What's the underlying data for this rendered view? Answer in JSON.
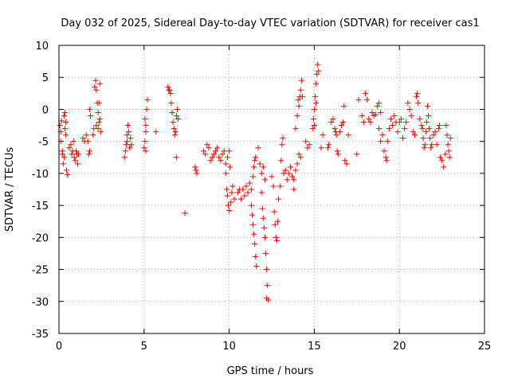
{
  "chart_data": {
    "type": "scatter",
    "title": "Day 032 of 2025, Sidereal Day-to-day VTEC variation (SDTVAR) for receiver cas1",
    "xlabel": "GPS time / hours",
    "ylabel": "SDTVAR / TECUs",
    "xlim": [
      0,
      25
    ],
    "ylim": [
      -35,
      10
    ],
    "xticks": [
      0,
      5,
      10,
      15,
      20,
      25
    ],
    "yticks": [
      -35,
      -30,
      -25,
      -20,
      -15,
      -10,
      -5,
      0,
      5,
      10
    ],
    "xtick_labels": [
      "0",
      "5",
      "10",
      "15",
      "20",
      "25"
    ],
    "ytick_labels": [
      "-35",
      "-30",
      "-25",
      "-20",
      "-15",
      "-10",
      "-5",
      "0",
      "5",
      "10"
    ],
    "grid": true,
    "marker": "plus",
    "series": [
      {
        "name": "SDTVAR",
        "color": "#ff0000",
        "points": [
          [
            0.05,
            -2.5
          ],
          [
            0.1,
            -3.5
          ],
          [
            0.15,
            -1.8
          ],
          [
            0.2,
            -7.0
          ],
          [
            0.25,
            -8.5
          ],
          [
            0.3,
            -1.0
          ],
          [
            0.35,
            -0.5
          ],
          [
            0.4,
            -4.0
          ],
          [
            0.45,
            -9.5
          ],
          [
            0.5,
            -10.2
          ],
          [
            0.2,
            -6.5
          ],
          [
            0.3,
            -7.5
          ],
          [
            0.35,
            -3.0
          ],
          [
            0.4,
            -2.0
          ],
          [
            0.1,
            -5.0
          ],
          [
            0.6,
            -6.0
          ],
          [
            0.7,
            -5.5
          ],
          [
            0.75,
            -7.0
          ],
          [
            0.8,
            -6.5
          ],
          [
            0.85,
            -5.0
          ],
          [
            0.9,
            -7.5
          ],
          [
            0.95,
            -8.0
          ],
          [
            1.0,
            -6.5
          ],
          [
            1.05,
            -7.0
          ],
          [
            1.1,
            -8.5
          ],
          [
            1.15,
            -7.0
          ],
          [
            1.4,
            -4.5
          ],
          [
            1.5,
            -5.0
          ],
          [
            1.6,
            -4.0
          ],
          [
            1.7,
            -5.0
          ],
          [
            1.75,
            -7.0
          ],
          [
            1.8,
            0.0
          ],
          [
            1.85,
            -1.0
          ],
          [
            1.8,
            -6.5
          ],
          [
            2.0,
            -4.0
          ],
          [
            2.05,
            -3.0
          ],
          [
            2.1,
            3.5
          ],
          [
            2.15,
            4.5
          ],
          [
            2.2,
            3.0
          ],
          [
            2.25,
            1.0
          ],
          [
            2.3,
            -0.5
          ],
          [
            2.35,
            -2.0
          ],
          [
            2.3,
            -3.0
          ],
          [
            2.4,
            4.0
          ],
          [
            2.2,
            -2.5
          ],
          [
            2.35,
            1.0
          ],
          [
            2.4,
            -1.5
          ],
          [
            2.45,
            -3.5
          ],
          [
            3.85,
            -7.5
          ],
          [
            3.9,
            -6.5
          ],
          [
            3.95,
            -5.5
          ],
          [
            4.0,
            -5.0
          ],
          [
            4.05,
            -2.5
          ],
          [
            4.1,
            -3.5
          ],
          [
            4.15,
            -6.0
          ],
          [
            4.2,
            -4.5
          ],
          [
            4.25,
            -5.5
          ],
          [
            4.0,
            -4.0
          ],
          [
            5.0,
            -6.0
          ],
          [
            5.05,
            -5.0
          ],
          [
            5.1,
            -6.5
          ],
          [
            5.05,
            -1.5
          ],
          [
            5.1,
            -2.5
          ],
          [
            5.15,
            0.0
          ],
          [
            5.2,
            1.5
          ],
          [
            5.1,
            -3.5
          ],
          [
            5.7,
            -3.5
          ],
          [
            6.4,
            3.5
          ],
          [
            6.45,
            3.0
          ],
          [
            6.5,
            3.0
          ],
          [
            6.55,
            2.5
          ],
          [
            6.6,
            1.0
          ],
          [
            6.65,
            -0.5
          ],
          [
            6.7,
            -2.0
          ],
          [
            6.75,
            -3.0
          ],
          [
            6.8,
            -4.0
          ],
          [
            6.85,
            -3.5
          ],
          [
            6.9,
            -1.0
          ],
          [
            6.95,
            0.0
          ],
          [
            7.0,
            -1.5
          ],
          [
            6.9,
            -7.5
          ],
          [
            7.4,
            -16.2
          ],
          [
            8.0,
            -9.0
          ],
          [
            8.05,
            -9.5
          ],
          [
            8.1,
            -10.0
          ],
          [
            8.5,
            -6.5
          ],
          [
            8.6,
            -7.0
          ],
          [
            8.7,
            -5.5
          ],
          [
            8.8,
            -6.0
          ],
          [
            8.9,
            -8.0
          ],
          [
            9.0,
            -7.5
          ],
          [
            9.1,
            -7.0
          ],
          [
            9.2,
            -6.5
          ],
          [
            9.3,
            -6.0
          ],
          [
            9.4,
            -7.5
          ],
          [
            9.5,
            -8.0
          ],
          [
            9.6,
            -7.0
          ],
          [
            9.7,
            -6.5
          ],
          [
            9.8,
            -8.5
          ],
          [
            9.9,
            -7.5
          ],
          [
            10.0,
            -6.5
          ],
          [
            10.05,
            -9.0
          ],
          [
            9.8,
            -10.0
          ],
          [
            9.85,
            -12.5
          ],
          [
            9.9,
            -13.5
          ],
          [
            9.95,
            -15.0
          ],
          [
            10.0,
            -15.8
          ],
          [
            10.1,
            -14.5
          ],
          [
            10.15,
            -13.0
          ],
          [
            10.2,
            -12.0
          ],
          [
            10.3,
            -14.0
          ],
          [
            10.5,
            -13.0
          ],
          [
            10.6,
            -12.5
          ],
          [
            10.7,
            -14.0
          ],
          [
            10.8,
            -12.5
          ],
          [
            10.9,
            -13.5
          ],
          [
            11.0,
            -12.0
          ],
          [
            11.1,
            -13.0
          ],
          [
            11.2,
            -11.5
          ],
          [
            11.3,
            -12.5
          ],
          [
            11.4,
            -10.5
          ],
          [
            11.45,
            -9.0
          ],
          [
            11.5,
            -8.0
          ],
          [
            11.55,
            -7.5
          ],
          [
            11.3,
            -15.0
          ],
          [
            11.35,
            -16.5
          ],
          [
            11.4,
            -18.0
          ],
          [
            11.45,
            -19.5
          ],
          [
            11.5,
            -21.0
          ],
          [
            11.55,
            -23.0
          ],
          [
            11.6,
            -24.5
          ],
          [
            11.7,
            -6.0
          ],
          [
            11.8,
            -8.5
          ],
          [
            11.9,
            -10.0
          ],
          [
            12.0,
            -9.0
          ],
          [
            12.1,
            -11.0
          ],
          [
            11.9,
            -13.0
          ],
          [
            11.95,
            -15.5
          ],
          [
            12.0,
            -17.0
          ],
          [
            12.05,
            -18.5
          ],
          [
            12.1,
            -20.0
          ],
          [
            12.15,
            -22.5
          ],
          [
            12.2,
            -25.0
          ],
          [
            12.25,
            -27.5
          ],
          [
            12.2,
            -29.5
          ],
          [
            12.3,
            -29.8
          ],
          [
            12.5,
            -10.5
          ],
          [
            12.6,
            -12.0
          ],
          [
            12.65,
            -16.0
          ],
          [
            12.7,
            -18.0
          ],
          [
            12.75,
            -20.0
          ],
          [
            12.8,
            -20.5
          ],
          [
            12.85,
            -17.5
          ],
          [
            12.9,
            -14.0
          ],
          [
            13.0,
            -12.0
          ],
          [
            13.05,
            -8.0
          ],
          [
            13.1,
            -5.5
          ],
          [
            13.15,
            -4.5
          ],
          [
            13.2,
            -10.0
          ],
          [
            13.3,
            -9.5
          ],
          [
            13.4,
            -11.0
          ],
          [
            13.5,
            -10.0
          ],
          [
            13.6,
            -9.0
          ],
          [
            13.7,
            -10.5
          ],
          [
            13.8,
            -11.0
          ],
          [
            13.9,
            -9.5
          ],
          [
            14.0,
            -8.5
          ],
          [
            14.1,
            -7.0
          ],
          [
            14.2,
            -7.5
          ],
          [
            13.8,
            -12.5
          ],
          [
            13.9,
            -3.0
          ],
          [
            14.0,
            -1.0
          ],
          [
            14.05,
            1.5
          ],
          [
            14.1,
            0.5
          ],
          [
            14.15,
            2.0
          ],
          [
            14.2,
            3.0
          ],
          [
            14.25,
            4.5
          ],
          [
            14.3,
            2.0
          ],
          [
            14.5,
            -5.0
          ],
          [
            14.6,
            -6.0
          ],
          [
            14.7,
            -5.5
          ],
          [
            14.9,
            -3.0
          ],
          [
            14.95,
            -1.5
          ],
          [
            15.0,
            0.0
          ],
          [
            15.05,
            2.0
          ],
          [
            15.1,
            4.0
          ],
          [
            15.15,
            5.5
          ],
          [
            15.2,
            7.0
          ],
          [
            15.25,
            6.0
          ],
          [
            15.0,
            -2.5
          ],
          [
            15.1,
            1.0
          ],
          [
            15.4,
            -6.0
          ],
          [
            15.5,
            -4.0
          ],
          [
            15.8,
            -6.0
          ],
          [
            15.85,
            -5.5
          ],
          [
            16.0,
            -2.0
          ],
          [
            16.1,
            -1.5
          ],
          [
            16.2,
            -3.0
          ],
          [
            16.25,
            -3.5
          ],
          [
            16.3,
            -4.0
          ],
          [
            16.35,
            -6.5
          ],
          [
            16.4,
            -7.0
          ],
          [
            16.5,
            -3.5
          ],
          [
            16.6,
            -2.5
          ],
          [
            16.7,
            -2.0
          ],
          [
            16.75,
            0.5
          ],
          [
            16.8,
            -8.0
          ],
          [
            16.9,
            -8.5
          ],
          [
            17.0,
            -4.0
          ],
          [
            17.5,
            -7.0
          ],
          [
            17.6,
            1.5
          ],
          [
            17.8,
            -1.0
          ],
          [
            17.9,
            -2.0
          ],
          [
            18.0,
            2.5
          ],
          [
            18.1,
            1.5
          ],
          [
            18.2,
            -1.5
          ],
          [
            18.3,
            -2.0
          ],
          [
            18.4,
            -0.5
          ],
          [
            18.5,
            -1.0
          ],
          [
            18.6,
            -0.8
          ],
          [
            18.7,
            0.5
          ],
          [
            18.8,
            1.0
          ],
          [
            18.9,
            -0.5
          ],
          [
            18.8,
            -3.0
          ],
          [
            18.9,
            -5.0
          ],
          [
            19.0,
            -4.0
          ],
          [
            19.1,
            -6.5
          ],
          [
            19.2,
            -7.5
          ],
          [
            19.25,
            -8.0
          ],
          [
            19.3,
            -5.0
          ],
          [
            19.4,
            -3.0
          ],
          [
            19.5,
            -1.5
          ],
          [
            19.6,
            -2.5
          ],
          [
            19.7,
            -1.0
          ],
          [
            19.8,
            -2.0
          ],
          [
            19.9,
            -3.5
          ],
          [
            20.0,
            -2.0
          ],
          [
            20.1,
            -1.5
          ],
          [
            20.2,
            -4.5
          ],
          [
            20.3,
            -3.0
          ],
          [
            20.4,
            -2.0
          ],
          [
            20.5,
            1.0
          ],
          [
            20.6,
            0.0
          ],
          [
            20.7,
            -1.0
          ],
          [
            20.8,
            -3.5
          ],
          [
            20.9,
            -4.0
          ],
          [
            21.0,
            2.0
          ],
          [
            21.05,
            2.5
          ],
          [
            21.1,
            1.0
          ],
          [
            21.2,
            -1.5
          ],
          [
            21.3,
            -2.5
          ],
          [
            21.35,
            -3.0
          ],
          [
            21.4,
            -4.5
          ],
          [
            21.45,
            -6.0
          ],
          [
            21.5,
            -5.5
          ],
          [
            21.55,
            -3.5
          ],
          [
            21.6,
            -2.0
          ],
          [
            21.65,
            0.5
          ],
          [
            21.7,
            -1.0
          ],
          [
            21.75,
            -3.0
          ],
          [
            21.8,
            -4.5
          ],
          [
            21.85,
            -6.0
          ],
          [
            21.9,
            -5.5
          ],
          [
            22.0,
            -4.0
          ],
          [
            22.1,
            -3.5
          ],
          [
            22.2,
            -5.5
          ],
          [
            22.3,
            -3.0
          ],
          [
            22.35,
            -2.5
          ],
          [
            22.4,
            -7.5
          ],
          [
            22.5,
            -8.0
          ],
          [
            22.6,
            -9.0
          ],
          [
            22.7,
            -7.0
          ],
          [
            22.75,
            -2.5
          ],
          [
            22.8,
            -4.0
          ],
          [
            22.85,
            -5.5
          ],
          [
            22.9,
            -6.5
          ],
          [
            22.95,
            -7.5
          ],
          [
            23.0,
            -4.5
          ]
        ]
      }
    ]
  }
}
